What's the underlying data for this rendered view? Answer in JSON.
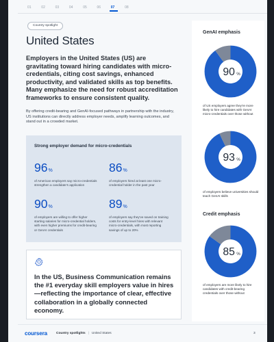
{
  "pager": {
    "pages": [
      "01",
      "02",
      "03",
      "04",
      "05",
      "06",
      "07",
      "08"
    ],
    "active_index": 6
  },
  "pill": "Country spotlight",
  "title": "United States",
  "lede": "Employers in the United States (US) are gravitating toward hiring candidates with micro-credentials, citing cost savings, enhanced productivity, and validated skills as top benefits. Many emphasize the need for robust accreditation frameworks to ensure consistent quality.",
  "body": "By offering credit-bearing and GenAI-focused pathways in partnership with the industry, US institutions can directly address employer needs, amplify learning outcomes, and stand out in a crowded market.",
  "stats": {
    "title": "Strong employer demand for micro-credentials",
    "pct_sign": "%",
    "items": [
      {
        "value": "96",
        "desc": "of American employers say micro-credentials strengthen a candidate's application"
      },
      {
        "value": "86",
        "desc": "of employers hired at least one micro-credential holder in the past year"
      },
      {
        "value": "90",
        "desc": "of employers are willing to offer higher starting salaries for micro-credential holders, with even higher premiums for credit-bearing or GenAI credentials"
      },
      {
        "value": "89",
        "desc": "of employers say they've saved on training costs for entry-level hires with relevant micro-credentials, with most reporting savings of up to 20%"
      }
    ]
  },
  "quote": "In the US, Business Communication remains the #1 everyday skill employers value in hires—reflecting the importance of clear, effective collaboration in a globally connected economy.",
  "sidebar": {
    "genai_heading": "GenAI emphasis",
    "credit_heading": "Credit emphasis",
    "donuts": [
      {
        "value": 90,
        "label": "90",
        "desc": "of US employers agree they're more likely to hire candidates with GenAI micro-credentials over those without"
      },
      {
        "value": 93,
        "label": "93",
        "desc": "of employers believe universities should teach GenAI skills"
      },
      {
        "value": 85,
        "label": "85",
        "desc": "of employers are more likely to hire candidates with credit-bearing credentials over those without"
      }
    ],
    "pct_sign": "%"
  },
  "colors": {
    "accent": "#0056d2",
    "donut_fill": "#1f5fc8",
    "donut_rest": "#7e8899",
    "stat_num": "#0a4cc2"
  },
  "footer": {
    "logo": "coursera",
    "section": "Country spotlights",
    "country": "United States",
    "page": "3"
  }
}
